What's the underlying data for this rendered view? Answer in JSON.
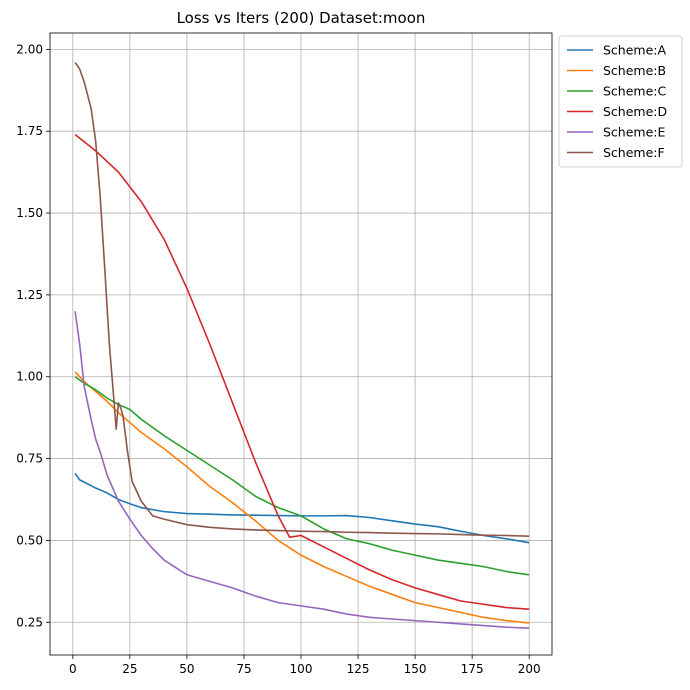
{
  "chart_data": {
    "type": "line",
    "title": "Loss vs Iters (200) Dataset:moon",
    "xlabel": "",
    "ylabel": "",
    "xlim": [
      -10,
      210
    ],
    "ylim": [
      0.15,
      2.05
    ],
    "xticks": [
      0,
      25,
      50,
      75,
      100,
      125,
      150,
      175,
      200
    ],
    "yticks": [
      0.25,
      0.5,
      0.75,
      1.0,
      1.25,
      1.5,
      1.75,
      2.0
    ],
    "xtick_labels": [
      "0",
      "25",
      "50",
      "75",
      "100",
      "125",
      "150",
      "175",
      "200"
    ],
    "ytick_labels": [
      "0.25",
      "0.50",
      "0.75",
      "1.00",
      "1.25",
      "1.50",
      "1.75",
      "2.00"
    ],
    "grid": true,
    "legend_position": "outside-top-right",
    "series": [
      {
        "name": "Scheme:A",
        "color": "#1f77b4",
        "x": [
          1,
          3,
          5,
          10,
          15,
          20,
          25,
          30,
          40,
          50,
          60,
          70,
          80,
          90,
          100,
          110,
          120,
          130,
          140,
          150,
          160,
          170,
          180,
          190,
          200
        ],
        "y": [
          0.705,
          0.685,
          0.678,
          0.66,
          0.645,
          0.625,
          0.612,
          0.6,
          0.588,
          0.582,
          0.58,
          0.578,
          0.577,
          0.576,
          0.575,
          0.575,
          0.576,
          0.57,
          0.56,
          0.55,
          0.542,
          0.528,
          0.515,
          0.505,
          0.493
        ]
      },
      {
        "name": "Scheme:B",
        "color": "#ff7f0e",
        "x": [
          1,
          5,
          10,
          15,
          20,
          25,
          30,
          40,
          50,
          60,
          70,
          80,
          90,
          100,
          110,
          120,
          130,
          140,
          150,
          160,
          170,
          180,
          190,
          200
        ],
        "y": [
          1.015,
          0.985,
          0.955,
          0.925,
          0.89,
          0.86,
          0.83,
          0.78,
          0.725,
          0.665,
          0.615,
          0.56,
          0.5,
          0.455,
          0.42,
          0.39,
          0.36,
          0.335,
          0.31,
          0.295,
          0.28,
          0.265,
          0.255,
          0.248
        ]
      },
      {
        "name": "Scheme:C",
        "color": "#2ca02c",
        "x": [
          1,
          5,
          10,
          15,
          20,
          25,
          30,
          40,
          50,
          60,
          70,
          80,
          90,
          100,
          110,
          120,
          130,
          140,
          150,
          160,
          170,
          180,
          190,
          200
        ],
        "y": [
          1.0,
          0.98,
          0.96,
          0.935,
          0.915,
          0.9,
          0.87,
          0.82,
          0.775,
          0.73,
          0.685,
          0.635,
          0.6,
          0.575,
          0.535,
          0.505,
          0.49,
          0.47,
          0.455,
          0.44,
          0.43,
          0.42,
          0.405,
          0.395
        ]
      },
      {
        "name": "Scheme:D",
        "color": "#d62728",
        "x": [
          1,
          10,
          20,
          30,
          40,
          50,
          60,
          70,
          80,
          90,
          95,
          100,
          110,
          120,
          130,
          140,
          150,
          160,
          170,
          180,
          190,
          200
        ],
        "y": [
          1.74,
          1.69,
          1.625,
          1.535,
          1.42,
          1.27,
          1.1,
          0.92,
          0.74,
          0.575,
          0.51,
          0.515,
          0.48,
          0.445,
          0.41,
          0.38,
          0.355,
          0.335,
          0.315,
          0.305,
          0.295,
          0.29
        ]
      },
      {
        "name": "Scheme:E",
        "color": "#9467bd",
        "x": [
          1,
          3,
          5,
          8,
          10,
          12,
          15,
          20,
          25,
          30,
          35,
          40,
          50,
          60,
          70,
          80,
          90,
          100,
          110,
          120,
          130,
          140,
          150,
          160,
          170,
          180,
          190,
          200
        ],
        "y": [
          1.2,
          1.1,
          0.97,
          0.87,
          0.81,
          0.77,
          0.7,
          0.62,
          0.565,
          0.515,
          0.475,
          0.44,
          0.395,
          0.375,
          0.355,
          0.33,
          0.31,
          0.3,
          0.29,
          0.275,
          0.265,
          0.26,
          0.255,
          0.25,
          0.245,
          0.24,
          0.235,
          0.232
        ]
      },
      {
        "name": "Scheme:F",
        "color": "#8c564b",
        "x": [
          1,
          3,
          5,
          8,
          10,
          12,
          14,
          16,
          18,
          19,
          20,
          21,
          22,
          24,
          26,
          30,
          35,
          40,
          50,
          60,
          70,
          80,
          90,
          100,
          110,
          120,
          130,
          140,
          150,
          160,
          170,
          180,
          190,
          200
        ],
        "y": [
          1.96,
          1.94,
          1.9,
          1.82,
          1.72,
          1.55,
          1.33,
          1.1,
          0.93,
          0.84,
          0.92,
          0.905,
          0.88,
          0.77,
          0.68,
          0.62,
          0.575,
          0.565,
          0.548,
          0.54,
          0.535,
          0.532,
          0.53,
          0.528,
          0.527,
          0.525,
          0.524,
          0.522,
          0.521,
          0.52,
          0.518,
          0.516,
          0.515,
          0.513
        ]
      }
    ]
  }
}
